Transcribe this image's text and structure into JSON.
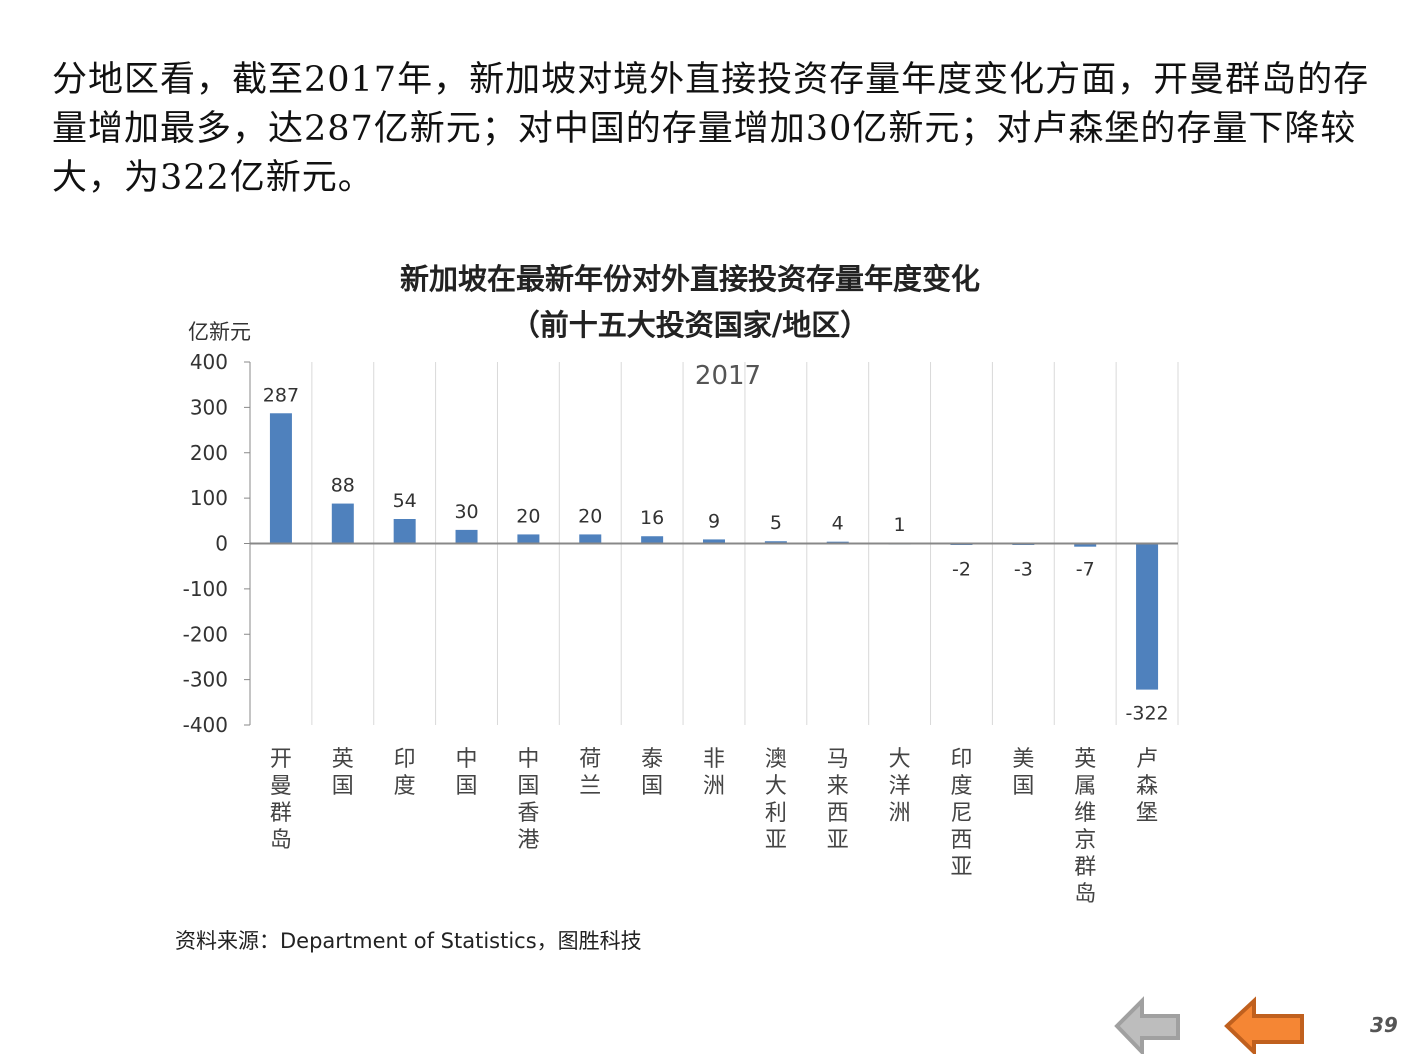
{
  "intro_text": "分地区看，截至2017年，新加坡对境外直接投资存量年度变化方面，开曼群岛的存量增加最多，达287亿新元；对中国的存量增加30亿新元；对卢森堡的存量下降较大，为322亿新元。",
  "chart_data": {
    "type": "bar",
    "title": "新加坡在最新年份对外直接投资存量年度变化",
    "subtitle": "（前十五大投资国家/地区）",
    "ylabel": "亿新元",
    "xlabel": "",
    "series_label": "2017",
    "categories": [
      "开曼群岛",
      "英国",
      "印度",
      "中国",
      "中国香港",
      "荷兰",
      "泰国",
      "非洲",
      "澳大利亚",
      "马来西亚",
      "大洋洲",
      "印度尼西亚",
      "美国",
      "英属维京群岛",
      "卢森堡"
    ],
    "values": [
      287,
      88,
      54,
      30,
      20,
      20,
      16,
      9,
      5,
      4,
      1,
      -2,
      -3,
      -7,
      -322
    ],
    "ylim": [
      -400,
      400
    ],
    "yticks": [
      400,
      300,
      200,
      100,
      0,
      -100,
      -200,
      -300,
      -400
    ],
    "grid": "vertical",
    "bar_color": "#4F81BD"
  },
  "source": "资料来源：Department of Statistics，图胜科技",
  "page_number": "39",
  "nav": {
    "back_color": "#B0B0B0",
    "prev_color": "#F58634"
  }
}
